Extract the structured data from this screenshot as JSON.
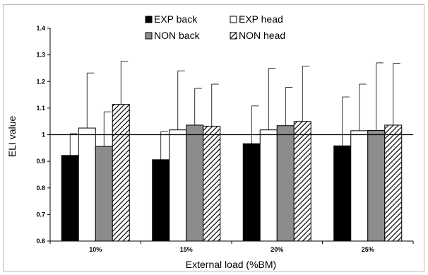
{
  "chart_data": {
    "type": "bar",
    "title": "",
    "xlabel": "External load (%BM)",
    "ylabel": "ELI value",
    "ylim": [
      0.6,
      1.4
    ],
    "yticks": [
      "0.6",
      "0.7",
      "0.8",
      "0.9",
      "1",
      "1.1",
      "1.2",
      "1.3",
      "1.4"
    ],
    "categories": [
      "10%",
      "15%",
      "20%",
      "25%"
    ],
    "reference_line": 1.0,
    "grid": false,
    "legend_position": "top-center",
    "series": [
      {
        "name": "EXP back",
        "fill": "black",
        "values": [
          0.922,
          0.906,
          0.966,
          0.958
        ],
        "error_upper": [
          1.004,
          1.012,
          1.108,
          1.142
        ]
      },
      {
        "name": "EXP head",
        "fill": "white",
        "values": [
          1.025,
          1.018,
          1.018,
          1.015
        ],
        "error_upper": [
          1.232,
          1.24,
          1.25,
          1.19
        ]
      },
      {
        "name": "NON back",
        "fill": "gray",
        "values": [
          0.956,
          1.036,
          1.034,
          1.016
        ],
        "error_upper": [
          1.086,
          1.174,
          1.178,
          1.27
        ]
      },
      {
        "name": "NON head",
        "fill": "hatched",
        "values": [
          1.114,
          1.032,
          1.05,
          1.036
        ],
        "error_upper": [
          1.276,
          1.19,
          1.258,
          1.268
        ]
      }
    ]
  },
  "colors": {
    "black_bar": "#000000",
    "white_bar": "#ffffff",
    "gray_bar": "#8c8c8c",
    "axis": "#000000",
    "frame": "#b9b9b9"
  }
}
